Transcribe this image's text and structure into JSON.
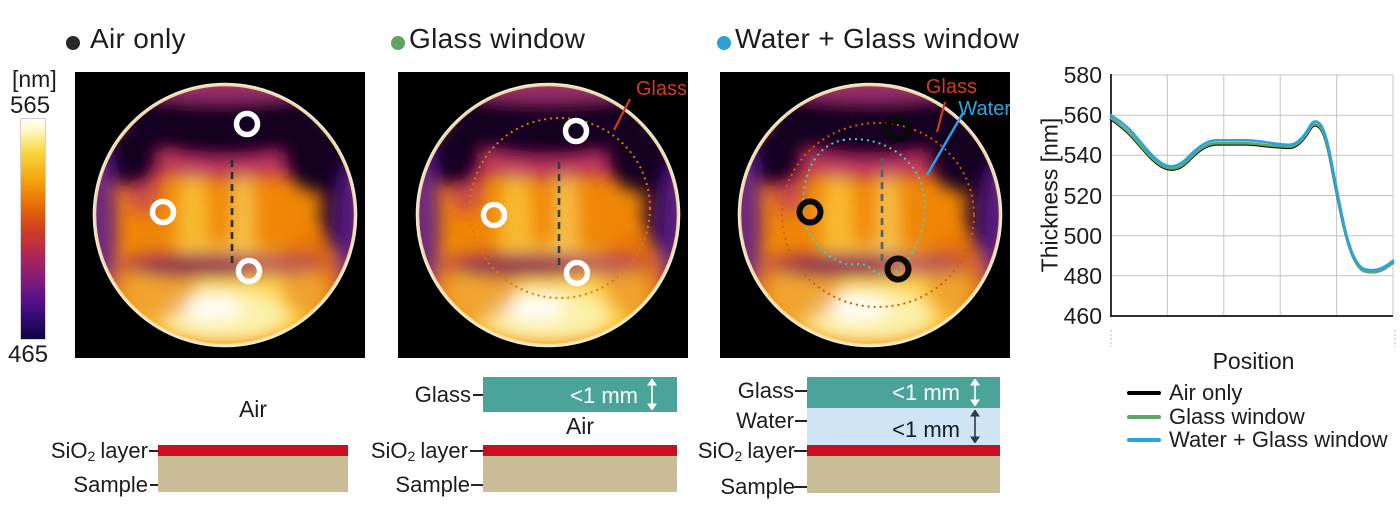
{
  "colorbar": {
    "unit_label": "[nm]",
    "max_value": "565",
    "min_value": "465"
  },
  "panels": [
    {
      "title": "Air only",
      "bullet_color": "#2b2727"
    },
    {
      "title": "Glass window",
      "bullet_color": "#5ca45f",
      "glass_annotation": "Glass"
    },
    {
      "title": "Water + Glass window",
      "bullet_color": "#2ba0d8",
      "glass_annotation": "Glass",
      "water_annotation": "Water"
    }
  ],
  "annotation_colors": {
    "glass": "#d23b1e",
    "water": "#28a7e1"
  },
  "chart": {
    "ylabel": "Thickness [nm]",
    "xlabel": "Position",
    "legend": [
      {
        "label": "Air only",
        "color": "#000000"
      },
      {
        "label": "Glass window",
        "color": "#5fa468"
      },
      {
        "label": "Water + Glass window",
        "color": "#27a5e0"
      }
    ]
  },
  "chart_data": {
    "type": "line",
    "x": [
      0,
      0.05,
      0.1,
      0.15,
      0.2,
      0.25,
      0.3,
      0.35,
      0.4,
      0.45,
      0.5,
      0.55,
      0.6,
      0.65,
      0.69,
      0.72,
      0.76,
      0.8,
      0.84,
      0.88,
      0.92,
      0.96,
      1
    ],
    "series": [
      {
        "name": "Air only",
        "color": "#000000",
        "values": [
          558,
          553,
          545,
          537,
          532.5,
          533.5,
          541,
          545.5,
          545.5,
          545.5,
          545.5,
          544.5,
          544,
          543.5,
          549,
          556.5,
          551,
          521,
          495,
          483,
          481.5,
          482.5,
          486.5
        ]
      },
      {
        "name": "Glass window",
        "color": "#5fa468",
        "values": [
          558.5,
          553.5,
          545.5,
          537.5,
          533,
          534,
          541.5,
          546,
          546,
          546,
          546,
          545,
          544.5,
          544,
          549.5,
          557,
          551.5,
          521.5,
          495,
          483,
          481.5,
          482.5,
          486.5
        ]
      },
      {
        "name": "Water + Glass window",
        "color": "#27a5e0",
        "values": [
          560,
          555.5,
          547.5,
          539,
          534,
          535.5,
          543,
          547.5,
          547.5,
          547.5,
          547.5,
          546.5,
          545.5,
          545,
          550.5,
          558.5,
          553,
          523,
          496,
          484,
          482.5,
          483.5,
          487.5
        ]
      }
    ],
    "title": "",
    "xlabel": "Position",
    "ylabel": "Thickness [nm]",
    "ylim": [
      460,
      580
    ],
    "yticks": [
      580,
      560,
      540,
      520,
      500,
      480,
      460
    ],
    "grid": true,
    "legend_position": "below-right",
    "position_axis_gradient": [
      "#161616",
      "#50677e",
      "#a9cce9"
    ]
  },
  "schematics": {
    "air_label": "Air",
    "glass_label": "Glass",
    "water_label": "Water",
    "sio2_prefix": "SiO",
    "sio2_sub": "2",
    "sio2_suffix": "layer",
    "sample_label": "Sample",
    "glass_thickness": "<1 mm",
    "water_thickness": "<1 mm",
    "colors": {
      "glass": "#4ba49a",
      "water": "#cfe4f5",
      "sio2": "#cb0e22",
      "sample": "#c9bd98"
    }
  }
}
